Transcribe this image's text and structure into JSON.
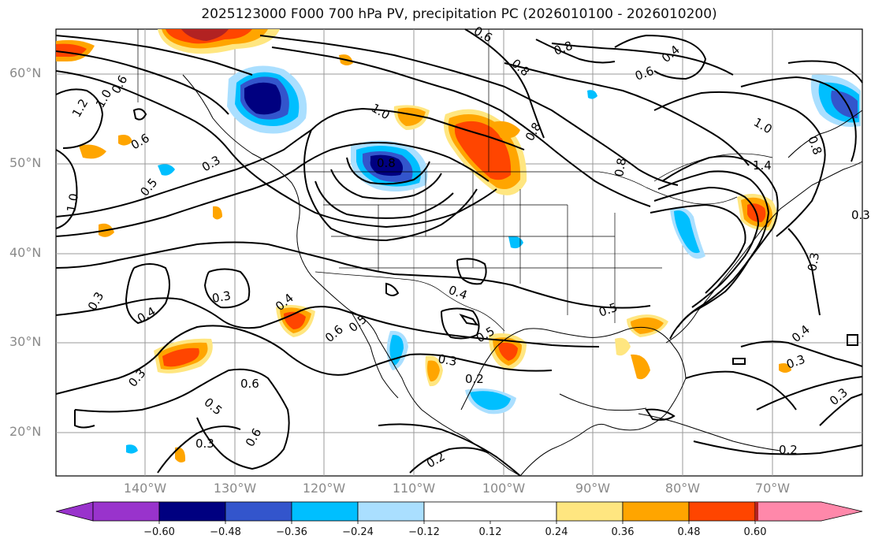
{
  "title": "2025123000 F000 700 hPa PV, precipitation PC (2026010100 - 2026010200)",
  "lat_labels": [
    "60°N",
    "50°N",
    "40°N",
    "30°N",
    "20°N"
  ],
  "lon_labels": [
    "140°W",
    "130°W",
    "120°W",
    "110°W",
    "100°W",
    "90°W",
    "80°W",
    "70°W"
  ],
  "colorbar": {
    "ticks": [
      "−0.60",
      "−0.48",
      "−0.36",
      "−0.24",
      "−0.12",
      "0.12",
      "0.24",
      "0.36",
      "0.48",
      "0.60"
    ],
    "colors": [
      "#9933cc",
      "#000080",
      "#3355cc",
      "#00bfff",
      "#aadfff",
      "#ffffff",
      "#ffe680",
      "#ffa500",
      "#ff4500",
      "#b22222",
      "#ff88aa"
    ]
  },
  "contour_labels": [
    "0.3",
    "0.4",
    "0.5",
    "0.6",
    "0.8",
    "1.0",
    "1.2",
    "1.4",
    "0.2"
  ]
}
